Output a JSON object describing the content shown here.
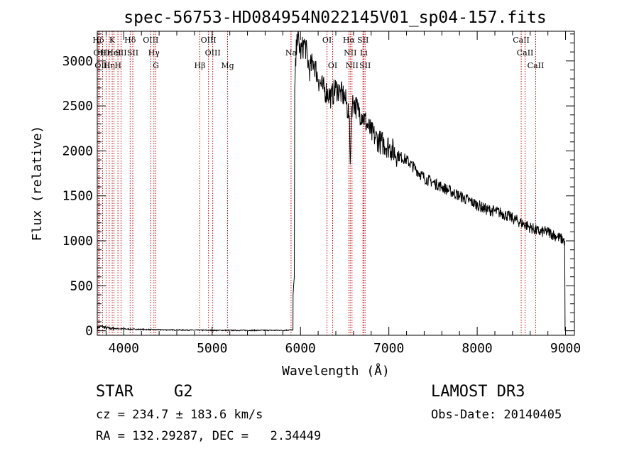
{
  "chart_data": {
    "type": "line",
    "title": "spec-56753-HD084954N022145V01_sp04-157.fits",
    "xlabel": "Wavelength (Å)",
    "ylabel": "Flux (relative)",
    "xlim": [
      3700,
      9100
    ],
    "ylim": [
      -50,
      3330
    ],
    "xticks": [
      4000,
      5000,
      6000,
      7000,
      8000,
      9000
    ],
    "yticks": [
      0,
      500,
      1000,
      1500,
      2000,
      2500,
      3000
    ],
    "grid": false,
    "series": [
      {
        "x": [
          3700,
          3750,
          3800,
          3900,
          4000,
          4200,
          4500,
          5000,
          5500,
          5800,
          5900,
          5915,
          5916,
          5930,
          5935,
          5960,
          6000,
          6050,
          6100,
          6150,
          6200,
          6250,
          6300,
          6350,
          6400,
          6450,
          6500,
          6550,
          6563,
          6580,
          6600,
          6650,
          6700,
          6750,
          6800,
          6850,
          6900,
          7000,
          7100,
          7200,
          7300,
          7400,
          7500,
          7600,
          7700,
          7800,
          7900,
          8000,
          8100,
          8200,
          8300,
          8400,
          8500,
          8600,
          8700,
          8800,
          8900,
          8990,
          8995
        ],
        "y": [
          35,
          50,
          30,
          25,
          20,
          15,
          10,
          5,
          5,
          5,
          10,
          10,
          400,
          600,
          2700,
          3300,
          3100,
          3200,
          2900,
          3000,
          2800,
          2700,
          2650,
          2600,
          2700,
          2650,
          2600,
          2400,
          1850,
          2500,
          2550,
          2450,
          2400,
          2300,
          2200,
          2150,
          2100,
          2050,
          1950,
          1900,
          1800,
          1700,
          1650,
          1600,
          1550,
          1500,
          1450,
          1400,
          1350,
          1330,
          1300,
          1250,
          1200,
          1150,
          1100,
          1100,
          1050,
          1000,
          0
        ]
      }
    ],
    "lines": [
      {
        "name": "Hδ",
        "x": 3712,
        "row": 0
      },
      {
        "name": "OII",
        "x": 3727,
        "row": 1
      },
      {
        "name": "OIII",
        "x": 3760,
        "row": 2
      },
      {
        "name": "Hε",
        "x": 3800,
        "row": 1
      },
      {
        "name": "Hη",
        "x": 3835,
        "row": 2
      },
      {
        "name": "K",
        "x": 3869,
        "row": 0
      },
      {
        "name": "HeI",
        "x": 3889,
        "row": 1
      },
      {
        "name": "H",
        "x": 3934,
        "row": 2
      },
      {
        "name": "SII",
        "x": 3969,
        "row": 1
      },
      {
        "name": "Hδ",
        "x": 4072,
        "row": 0
      },
      {
        "name": "SII",
        "x": 4102,
        "row": 1
      },
      {
        "name": "OIII",
        "x": 4305,
        "row": 0
      },
      {
        "name": "Hγ",
        "x": 4341,
        "row": 1
      },
      {
        "name": "G",
        "x": 4363,
        "row": 2
      },
      {
        "name": "Hβ",
        "x": 4861,
        "row": 2
      },
      {
        "name": "OIII",
        "x": 4959,
        "row": 0
      },
      {
        "name": "OIII",
        "x": 5007,
        "row": 1
      },
      {
        "name": "Mg",
        "x": 5175,
        "row": 2
      },
      {
        "name": "Na",
        "x": 5893,
        "row": 1
      },
      {
        "name": "OI",
        "x": 6300,
        "row": 0
      },
      {
        "name": "OI",
        "x": 6364,
        "row": 2
      },
      {
        "name": "Hα",
        "x": 6548,
        "row": 0
      },
      {
        "name": "NII",
        "x": 6563,
        "row": 1
      },
      {
        "name": "NII",
        "x": 6583,
        "row": 2
      },
      {
        "name": "SII",
        "x": 6707,
        "row": 0
      },
      {
        "name": "Li",
        "x": 6716,
        "row": 1
      },
      {
        "name": "SII",
        "x": 6731,
        "row": 2
      },
      {
        "name": "CaII",
        "x": 8498,
        "row": 0
      },
      {
        "name": "CaII",
        "x": 8542,
        "row": 1
      },
      {
        "name": "CaII",
        "x": 8662,
        "row": 2
      }
    ]
  },
  "info": {
    "class_label": "STAR",
    "subclass": "G2",
    "survey": "LAMOST DR3",
    "cz": "cz = 234.7 ± 183.6 km/s",
    "obs_date": "Obs-Date: 20140405",
    "coords": "RA = 132.29287, DEC =   2.34449"
  }
}
